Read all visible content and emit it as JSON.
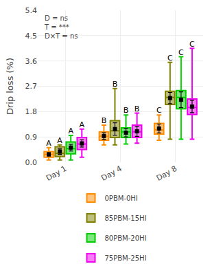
{
  "chart_data": {
    "type": "box",
    "ylabel": "Drip loss (%)",
    "annotation": "D = ns\nT = ***\nD×T = ns",
    "categories": [
      "Day 1",
      "Day 4",
      "Day 8"
    ],
    "ylim": [
      0.0,
      5.4
    ],
    "yticks": [
      {
        "value": 0,
        "label": "0.0"
      },
      0.9,
      1.8,
      2.7,
      3.6,
      4.5,
      5.4
    ],
    "grid": true,
    "legend": "bottom",
    "series": [
      {
        "name": "0PBM-0HI",
        "color": "#FF8C00",
        "q1": [
          0.18,
          0.78,
          1.0
        ],
        "median": [
          0.28,
          0.92,
          1.15
        ],
        "q3": [
          0.38,
          1.08,
          1.38
        ],
        "whisker_low": [
          0.08,
          0.62,
          0.78
        ],
        "whisker_high": [
          0.52,
          1.32,
          1.68
        ],
        "mean": [
          0.28,
          0.93,
          1.2
        ],
        "mean_err": [
          0.06,
          0.12,
          0.16
        ],
        "letters": [
          "A",
          "B",
          "C"
        ]
      },
      {
        "name": "85PBM-15HI",
        "color": "#808000",
        "q1": [
          0.2,
          0.88,
          2.05
        ],
        "median": [
          0.32,
          1.12,
          2.3
        ],
        "q3": [
          0.55,
          1.48,
          2.52
        ],
        "whisker_low": [
          0.08,
          0.62,
          0.82
        ],
        "whisker_high": [
          0.62,
          2.62,
          3.55
        ],
        "mean": [
          0.38,
          1.18,
          2.28
        ],
        "mean_err": [
          0.1,
          0.22,
          0.2
        ],
        "letters": [
          "A",
          "B",
          "C"
        ]
      },
      {
        "name": "80PBM-20HI",
        "color": "#00CC00",
        "q1": [
          0.3,
          0.88,
          1.9
        ],
        "median": [
          0.48,
          1.08,
          2.3
        ],
        "q3": [
          0.72,
          1.22,
          2.55
        ],
        "whisker_low": [
          0.08,
          0.65,
          0.82
        ],
        "whisker_high": [
          0.95,
          1.68,
          3.75
        ],
        "mean": [
          0.52,
          1.05,
          2.22
        ],
        "mean_err": [
          0.12,
          0.15,
          0.28
        ],
        "letters": [
          "A",
          "B",
          "C"
        ]
      },
      {
        "name": "75PBM-25HI",
        "color": "#EE00EE",
        "q1": [
          0.45,
          0.88,
          1.7
        ],
        "median": [
          0.65,
          1.08,
          1.95
        ],
        "q3": [
          0.88,
          1.32,
          2.25
        ],
        "whisker_low": [
          0.18,
          0.68,
          0.82
        ],
        "whisker_high": [
          1.18,
          1.75,
          4.05
        ],
        "mean": [
          0.67,
          1.1,
          1.98
        ],
        "mean_err": [
          0.13,
          0.18,
          0.22
        ],
        "letters": [
          "A",
          "B",
          "C"
        ]
      }
    ]
  }
}
